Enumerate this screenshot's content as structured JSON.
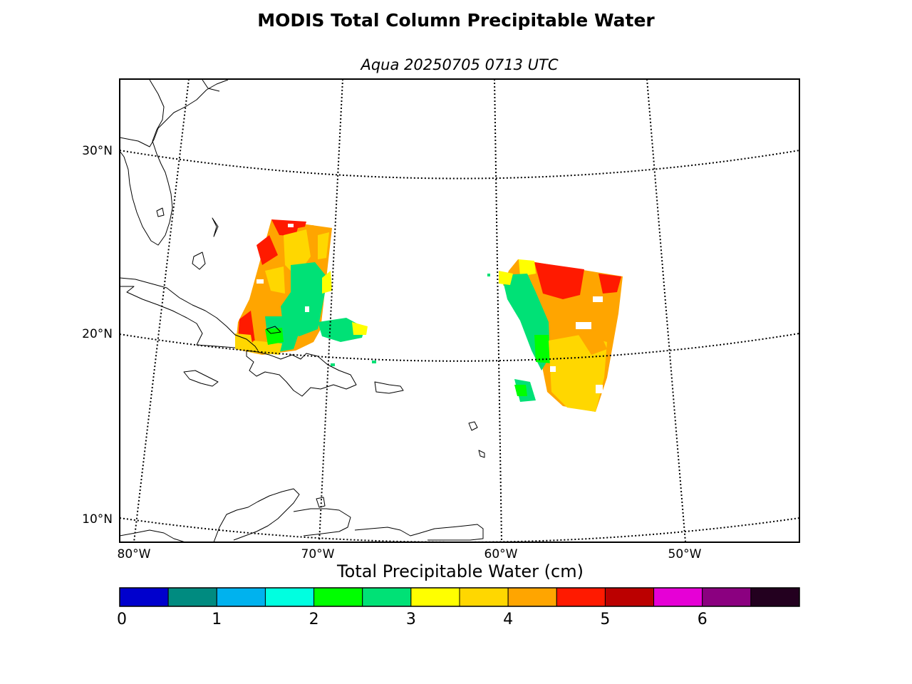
{
  "title": "MODIS Total Column Precipitable Water",
  "subtitle": "Aqua 20250705 0713 UTC",
  "lat_labels": [
    "30°N",
    "20°N",
    "10°N"
  ],
  "lon_labels": [
    "80°W",
    "70°W",
    "60°W",
    "50°W"
  ],
  "colorbar": {
    "title": "Total Precipitable Water (cm)",
    "tick_labels": [
      "0",
      "1",
      "2",
      "3",
      "4",
      "5",
      "6"
    ],
    "ticks": [
      0,
      1,
      2,
      3,
      4,
      5,
      6
    ],
    "range": [
      0,
      7
    ],
    "bins": [
      {
        "from": 0.0,
        "to": 0.5,
        "color": "#0000cd"
      },
      {
        "from": 0.5,
        "to": 1.0,
        "color": "#008b80"
      },
      {
        "from": 1.0,
        "to": 1.5,
        "color": "#00b2ee"
      },
      {
        "from": 1.5,
        "to": 2.0,
        "color": "#00ffe0"
      },
      {
        "from": 2.0,
        "to": 2.5,
        "color": "#00ff00"
      },
      {
        "from": 2.5,
        "to": 3.0,
        "color": "#00e176"
      },
      {
        "from": 3.0,
        "to": 3.5,
        "color": "#ffff00"
      },
      {
        "from": 3.5,
        "to": 4.0,
        "color": "#ffd700"
      },
      {
        "from": 4.0,
        "to": 4.5,
        "color": "#ffa500"
      },
      {
        "from": 4.5,
        "to": 5.0,
        "color": "#ff1a00"
      },
      {
        "from": 5.0,
        "to": 5.5,
        "color": "#bb0000"
      },
      {
        "from": 5.5,
        "to": 6.0,
        "color": "#e600d6"
      },
      {
        "from": 6.0,
        "to": 6.5,
        "color": "#8b0080"
      },
      {
        "from": 6.5,
        "to": 7.0,
        "color": "#23001f"
      }
    ]
  }
}
